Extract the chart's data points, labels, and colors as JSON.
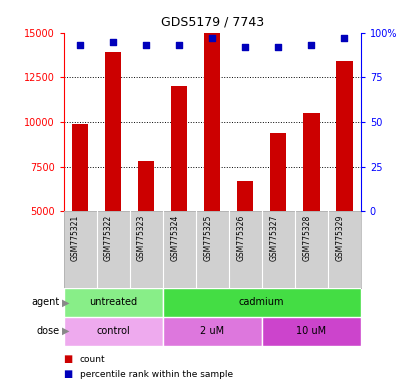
{
  "title": "GDS5179 / 7743",
  "samples": [
    "GSM775321",
    "GSM775322",
    "GSM775323",
    "GSM775324",
    "GSM775325",
    "GSM775326",
    "GSM775327",
    "GSM775328",
    "GSM775329"
  ],
  "counts": [
    9900,
    13900,
    7800,
    12000,
    15000,
    6700,
    9400,
    10500,
    13400
  ],
  "percentiles": [
    93,
    95,
    93,
    93,
    97,
    92,
    92,
    93,
    97
  ],
  "ylim_left": [
    5000,
    15000
  ],
  "ylim_right": [
    0,
    100
  ],
  "yticks_left": [
    5000,
    7500,
    10000,
    12500,
    15000
  ],
  "yticks_right": [
    0,
    25,
    50,
    75,
    100
  ],
  "ytick_labels_right": [
    "0",
    "25",
    "50",
    "75",
    "100%"
  ],
  "bar_color": "#cc0000",
  "dot_color": "#0000bb",
  "bar_bottom": 5000,
  "agent_groups": [
    {
      "text": "untreated",
      "span": [
        0,
        3
      ],
      "color": "#88ee88"
    },
    {
      "text": "cadmium",
      "span": [
        3,
        9
      ],
      "color": "#44dd44"
    }
  ],
  "dose_groups": [
    {
      "text": "control",
      "span": [
        0,
        3
      ],
      "color": "#eeaaee"
    },
    {
      "text": "2 uM",
      "span": [
        3,
        6
      ],
      "color": "#dd77dd"
    },
    {
      "text": "10 uM",
      "span": [
        6,
        9
      ],
      "color": "#cc44cc"
    }
  ],
  "legend_count_color": "#cc0000",
  "legend_percentile_color": "#0000bb",
  "background_color": "#ffffff",
  "sample_bg_color": "#d0d0d0"
}
